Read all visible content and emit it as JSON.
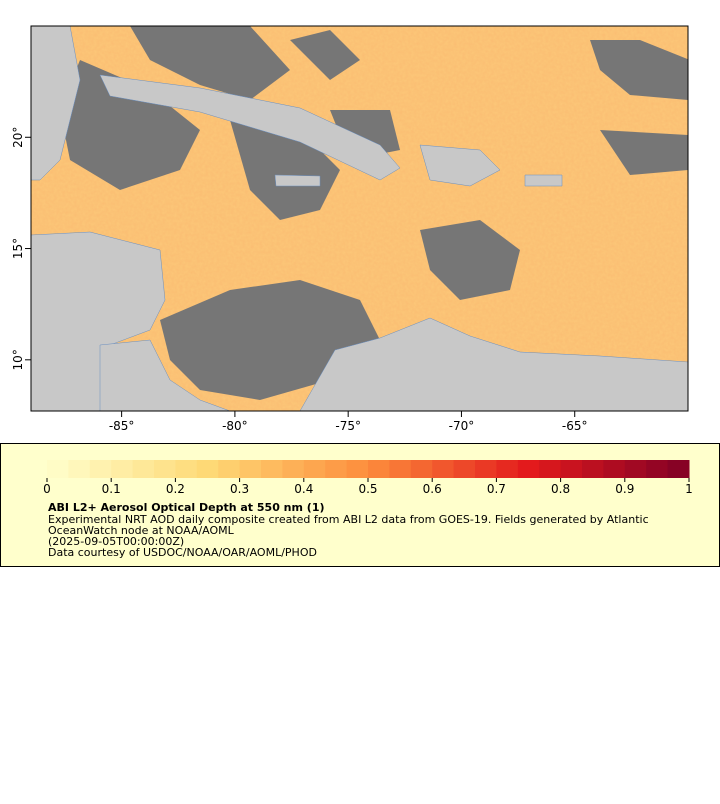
{
  "map": {
    "xlim": [
      -89,
      -60
    ],
    "ylim": [
      7.7,
      25
    ],
    "xticks": [
      {
        "value": -85,
        "label": "-85°"
      },
      {
        "value": -80,
        "label": "-80°"
      },
      {
        "value": -75,
        "label": "-75°"
      },
      {
        "value": -70,
        "label": "-70°"
      },
      {
        "value": -65,
        "label": "-65°"
      }
    ],
    "yticks": [
      {
        "value": 10,
        "label": "10°"
      },
      {
        "value": 15,
        "label": "15°"
      },
      {
        "value": 20,
        "label": "20°"
      }
    ]
  },
  "colorbar": {
    "range": [
      0,
      1
    ],
    "ticks": [
      0,
      0.1,
      0.2,
      0.3,
      0.4,
      0.5,
      0.6,
      0.7,
      0.8,
      0.9,
      1
    ]
  },
  "legend": {
    "title": "ABI L2+ Aerosol Optical Depth at 550 nm (1)",
    "lines": [
      "Experimental NRT AOD daily composite created from ABI L2 data from GOES-19. Fields generated by Atlantic",
      "OceanWatch node at NOAA/AOML",
      "(2025-09-05T00:00:00Z)",
      "Data courtesy of USDOC/NOAA/OAR/AOML/PHOD"
    ]
  }
}
